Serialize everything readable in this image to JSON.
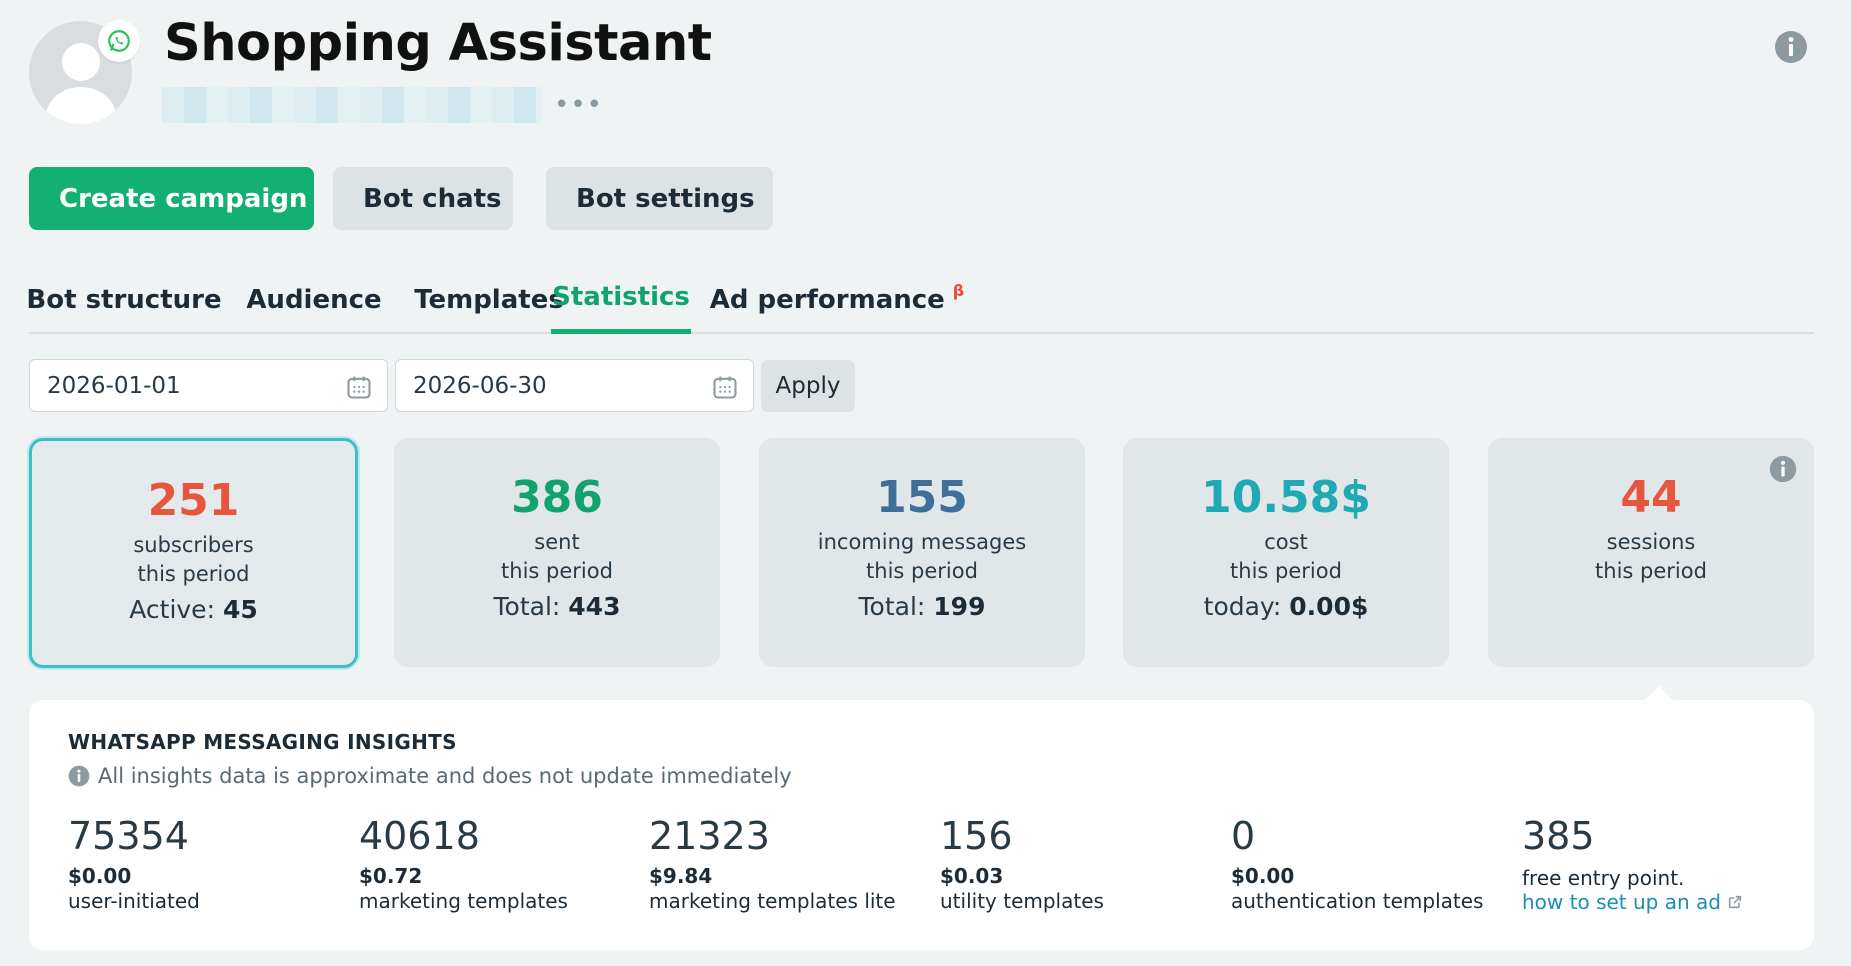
{
  "header": {
    "title": "Shopping Assistant",
    "more_label": "•••"
  },
  "actions": {
    "create_campaign": "Create campaign",
    "bot_chats": "Bot chats",
    "bot_settings": "Bot settings"
  },
  "tabs": [
    {
      "label": "Bot structure",
      "active": false
    },
    {
      "label": "Audience",
      "active": false
    },
    {
      "label": "Templates",
      "active": false
    },
    {
      "label": "Statistics",
      "active": true
    },
    {
      "label": "Ad performance",
      "badge": "β",
      "active": false
    }
  ],
  "filters": {
    "date_from": "2026-01-01",
    "date_to": "2026-06-30",
    "apply_label": "Apply"
  },
  "stats": [
    {
      "value": "251",
      "line1": "subscribers",
      "line2": "this period",
      "extra_label": "Active:",
      "extra_value": "45",
      "color": "#e8553e"
    },
    {
      "value": "386",
      "line1": "sent",
      "line2": "this period",
      "extra_label": "Total:",
      "extra_value": "443",
      "color": "#12a26f"
    },
    {
      "value": "155",
      "line1": "incoming messages",
      "line2": "this period",
      "extra_label": "Total:",
      "extra_value": "199",
      "color": "#3e6f9b"
    },
    {
      "value": "10.58$",
      "line1": "cost",
      "line2": "this period",
      "extra_label": "today:",
      "extra_value": "0.00$",
      "color": "#1fa9b5"
    },
    {
      "value": "44",
      "line1": "sessions",
      "line2": "this period",
      "extra_label": "",
      "extra_value": "",
      "color": "#e8553e"
    }
  ],
  "insights": {
    "title": "WHATSAPP MESSAGING INSIGHTS",
    "note": "All insights data is approximate and does not update immediately",
    "metrics": [
      {
        "value": "75354",
        "cost": "$0.00",
        "label": "user-initiated"
      },
      {
        "value": "40618",
        "cost": "$0.72",
        "label": "marketing templates"
      },
      {
        "value": "21323",
        "cost": "$9.84",
        "label": "marketing templates lite"
      },
      {
        "value": "156",
        "cost": "$0.03",
        "label": "utility templates"
      },
      {
        "value": "0",
        "cost": "$0.00",
        "label": "authentication templates"
      },
      {
        "value": "385",
        "cost": "",
        "label": "free entry point.",
        "link": "how to set up an ad"
      }
    ]
  }
}
